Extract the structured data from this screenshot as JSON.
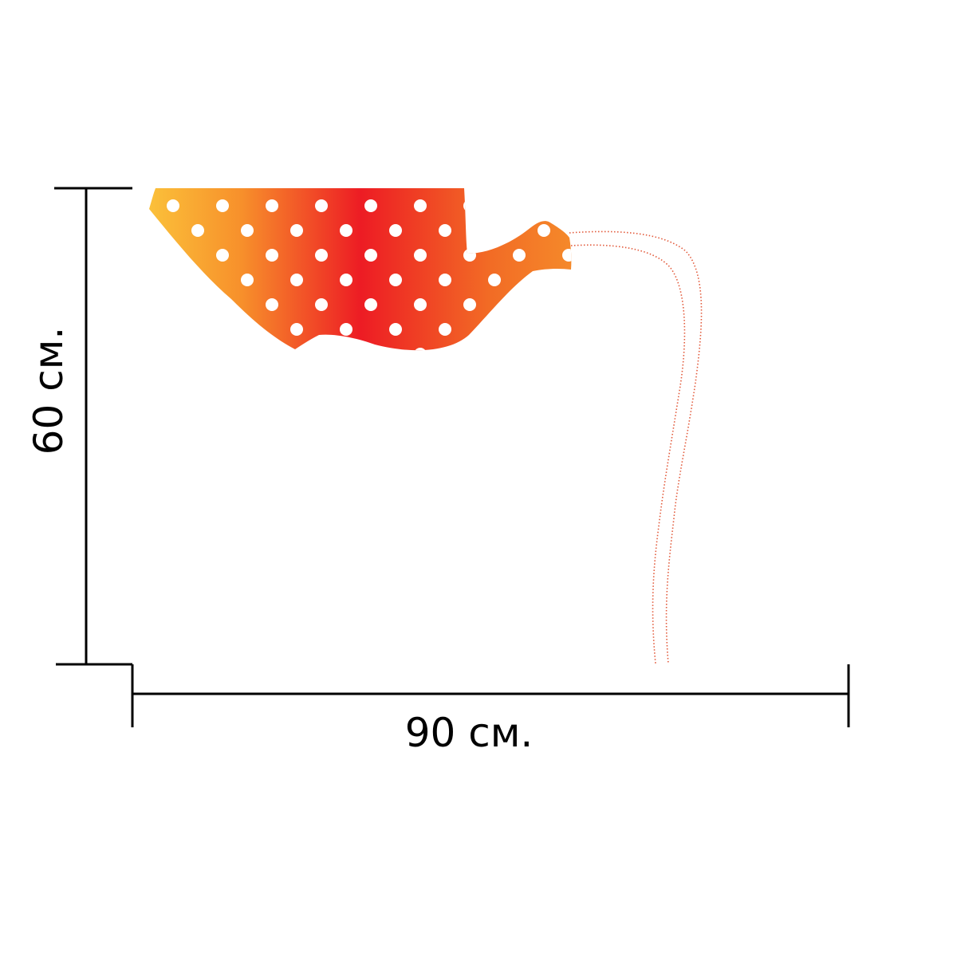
{
  "dimensions": {
    "height_label": "60 см.",
    "width_label": "90 см.",
    "height_value": 60,
    "width_value": 90,
    "unit": "см."
  },
  "artwork": {
    "subject": "teapot",
    "pattern": "polka-dots",
    "gradient_colors": [
      "#fbc13a",
      "#f7902b",
      "#ed1c24",
      "#f26b25",
      "#f58a2a"
    ],
    "dot_color": "#ffffff",
    "stream_color": "#e2593a",
    "line_color": "#000000"
  }
}
